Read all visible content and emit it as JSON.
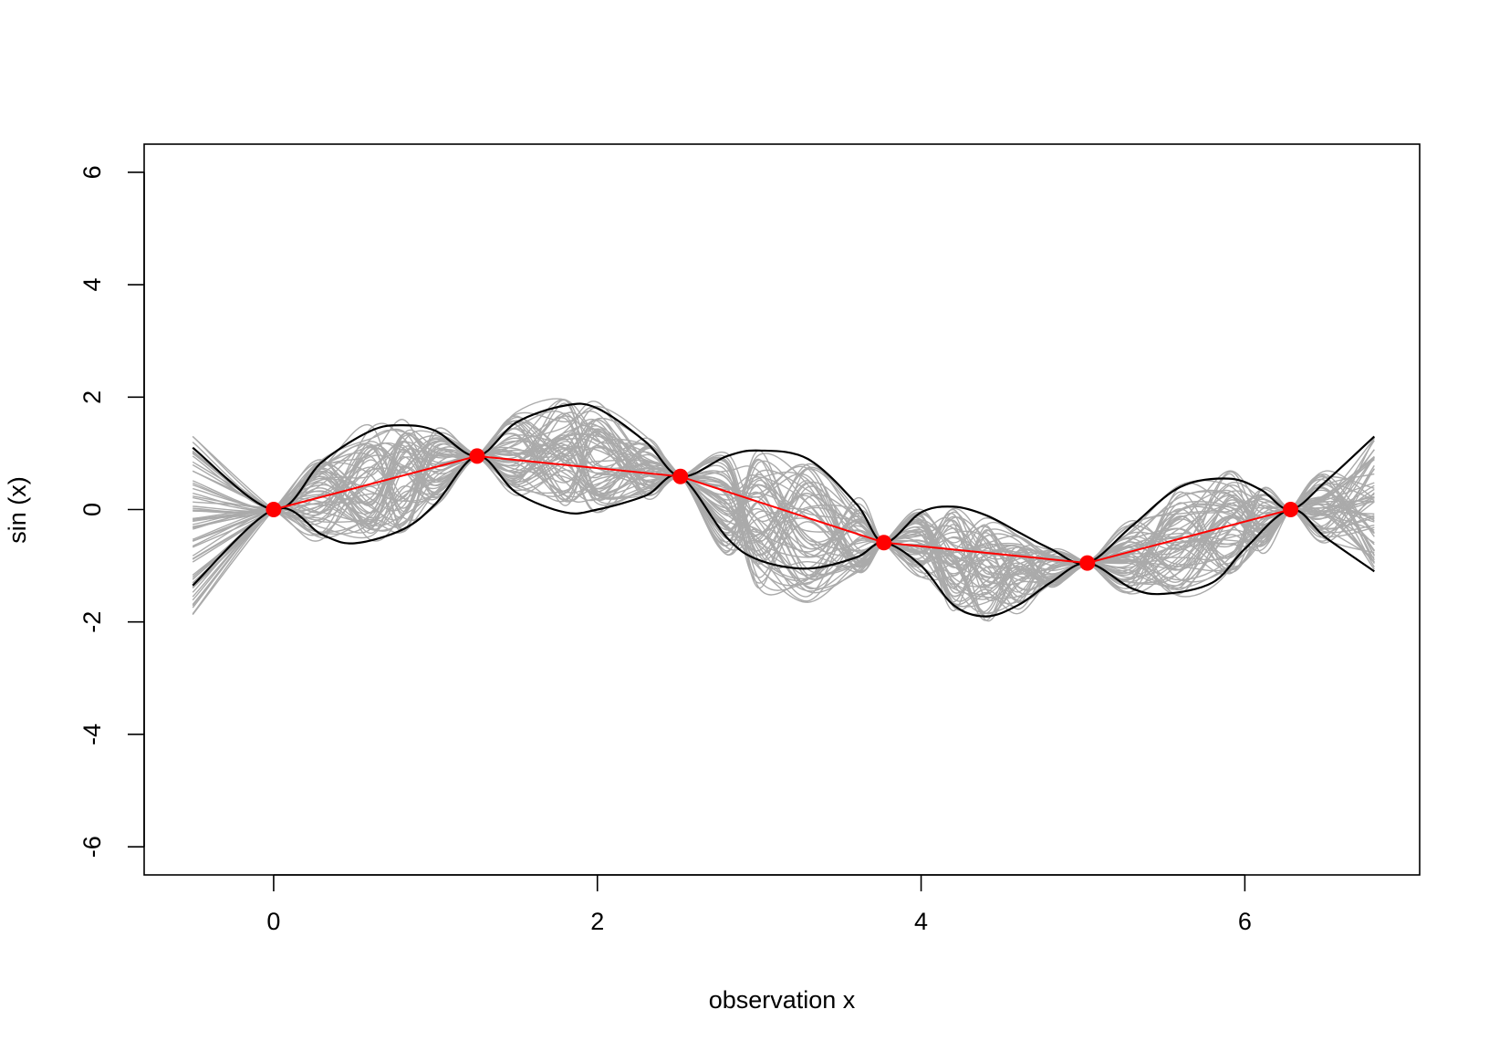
{
  "chart_data": {
    "type": "line",
    "xlabel": "observation x",
    "ylabel": "sin (x)",
    "xlim": [
      -0.8,
      7.08
    ],
    "ylim": [
      -6.5,
      6.5
    ],
    "x_ticks": [
      0,
      2,
      4,
      6
    ],
    "y_ticks": [
      -6,
      -4,
      -2,
      0,
      2,
      4,
      6
    ],
    "grid": false,
    "colors": {
      "samples": "#aaaaaa",
      "envelope": "#000000",
      "mean": "#ff0000",
      "observations": "#ff0000"
    },
    "observations": {
      "x": [
        0,
        1.257,
        2.513,
        3.77,
        5.027,
        6.283
      ],
      "y": [
        0,
        0.951,
        0.588,
        -0.588,
        -0.951,
        0
      ]
    },
    "upper_envelope": {
      "x": [
        -0.5,
        0,
        0.3,
        0.6,
        0.8,
        1.0,
        1.257,
        1.5,
        1.8,
        2.0,
        2.3,
        2.513,
        2.8,
        3.0,
        3.3,
        3.6,
        3.77,
        4.0,
        4.2,
        4.4,
        4.6,
        4.8,
        5.027,
        5.3,
        5.6,
        5.9,
        6.1,
        6.283,
        6.5,
        6.8
      ],
      "y": [
        1.1,
        0,
        0.85,
        1.4,
        1.5,
        1.4,
        0.951,
        1.55,
        1.85,
        1.8,
        1.2,
        0.588,
        0.95,
        1.05,
        0.9,
        0.1,
        -0.588,
        -0.05,
        0.05,
        -0.1,
        -0.4,
        -0.7,
        -0.951,
        -0.3,
        0.4,
        0.55,
        0.35,
        0,
        0.5,
        1.3
      ]
    },
    "lower_envelope": {
      "x": [
        -0.5,
        0,
        0.3,
        0.5,
        0.8,
        1.0,
        1.257,
        1.5,
        1.8,
        2.0,
        2.3,
        2.513,
        2.8,
        3.0,
        3.3,
        3.6,
        3.77,
        4.0,
        4.2,
        4.4,
        4.6,
        4.8,
        5.027,
        5.3,
        5.5,
        5.8,
        6.0,
        6.283,
        6.5,
        6.8
      ],
      "y": [
        -1.35,
        0,
        -0.45,
        -0.6,
        -0.35,
        0.1,
        0.951,
        0.3,
        -0.05,
        0.0,
        0.25,
        0.588,
        -0.5,
        -0.9,
        -1.05,
        -0.85,
        -0.588,
        -1.0,
        -1.7,
        -1.9,
        -1.7,
        -1.3,
        -0.951,
        -1.4,
        -1.5,
        -1.3,
        -0.7,
        0,
        -0.5,
        -1.1
      ]
    },
    "sample_band": {
      "description_count": 60,
      "upper": [
        1.3,
        0,
        1.0,
        1.55,
        1.6,
        1.45,
        0.951,
        1.75,
        2.05,
        1.95,
        1.3,
        0.588,
        1.0,
        1.05,
        0.95,
        0.2,
        -0.588,
        0.0,
        0.1,
        -0.05,
        -0.35,
        -0.65,
        -0.951,
        -0.2,
        0.5,
        0.7,
        0.45,
        0,
        0.7,
        1.5
      ],
      "lower": [
        -1.9,
        0,
        -0.55,
        -0.65,
        -0.4,
        0.05,
        0.951,
        0.2,
        -0.1,
        -0.05,
        0.2,
        0.588,
        -0.8,
        -1.4,
        -1.65,
        -1.2,
        -0.588,
        -1.2,
        -1.85,
        -2.05,
        -1.85,
        -1.4,
        -0.951,
        -1.5,
        -1.6,
        -1.4,
        -0.8,
        0,
        -0.6,
        -1.2
      ]
    }
  }
}
